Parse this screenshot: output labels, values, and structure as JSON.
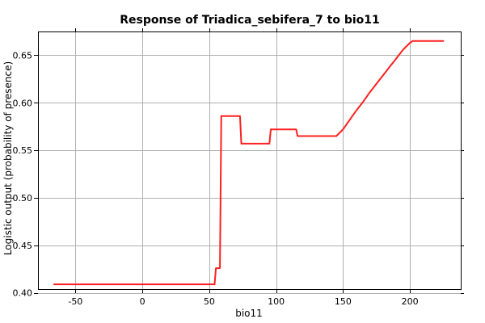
{
  "chart_data": {
    "type": "line",
    "title": "Response of Triadica_sebifera_7 to bio11",
    "xlabel": "bio11",
    "ylabel": "Logistic output (probability of presence)",
    "xlim": [
      -78,
      238
    ],
    "ylim": [
      0.404,
      0.675
    ],
    "xticks": [
      -50,
      0,
      50,
      100,
      150,
      200
    ],
    "yticks": [
      0.4,
      0.45,
      0.5,
      0.55,
      0.6,
      0.65
    ],
    "x_tick_labels": [
      "-50",
      "0",
      "50",
      "100",
      "150",
      "200"
    ],
    "y_tick_labels": [
      "0.40",
      "0.45",
      "0.50",
      "0.55",
      "0.60",
      "0.65"
    ],
    "grid": true,
    "series": [
      {
        "color": "#ff2020",
        "x": [
          -66,
          54,
          55,
          58,
          59,
          60,
          73,
          74,
          95,
          96,
          115,
          116,
          145,
          150,
          155,
          160,
          165,
          170,
          175,
          180,
          185,
          190,
          195,
          200,
          202,
          225
        ],
        "y": [
          0.409,
          0.409,
          0.426,
          0.426,
          0.586,
          0.586,
          0.586,
          0.557,
          0.557,
          0.572,
          0.572,
          0.565,
          0.565,
          0.572,
          0.582,
          0.592,
          0.601,
          0.611,
          0.62,
          0.629,
          0.638,
          0.647,
          0.656,
          0.663,
          0.665,
          0.665
        ]
      }
    ]
  },
  "colors": {
    "grid": "#b0b0b0",
    "axis": "#000000",
    "background": "#ffffff"
  }
}
